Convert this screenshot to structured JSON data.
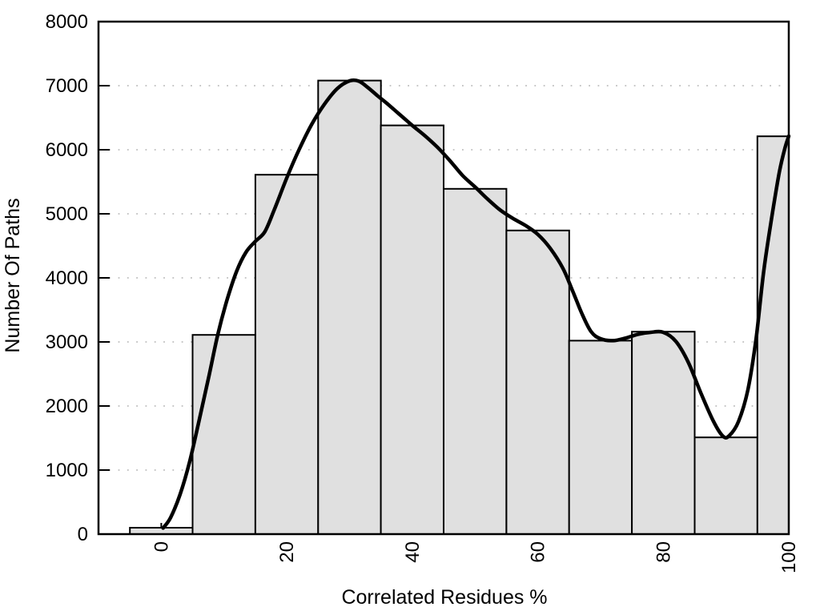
{
  "chart_data": {
    "type": "bar",
    "subtype": "histogram_with_smoothed_curve",
    "title": "",
    "xlabel": "Correlated Residues %",
    "ylabel": "Number Of Paths",
    "xlim": [
      -10,
      100
    ],
    "ylim": [
      0,
      8000
    ],
    "x_ticks": [
      0,
      20,
      40,
      60,
      80,
      100
    ],
    "y_ticks": [
      0,
      1000,
      2000,
      3000,
      4000,
      5000,
      6000,
      7000,
      8000
    ],
    "legend": "none",
    "grid": {
      "horizontal": true,
      "vertical": false,
      "style": "dotted"
    },
    "bins": [
      {
        "x0": -5,
        "x1": 5,
        "count": 100
      },
      {
        "x0": 5,
        "x1": 15,
        "count": 3110
      },
      {
        "x0": 15,
        "x1": 25,
        "count": 5610
      },
      {
        "x0": 25,
        "x1": 35,
        "count": 7080
      },
      {
        "x0": 35,
        "x1": 45,
        "count": 6380
      },
      {
        "x0": 45,
        "x1": 55,
        "count": 5390
      },
      {
        "x0": 55,
        "x1": 65,
        "count": 4740
      },
      {
        "x0": 65,
        "x1": 75,
        "count": 3020
      },
      {
        "x0": 75,
        "x1": 85,
        "count": 3160
      },
      {
        "x0": 85,
        "x1": 95,
        "count": 1510
      },
      {
        "x0": 95,
        "x1": 100,
        "count": 6210
      }
    ],
    "curve": {
      "name": "smoothed-trend-line",
      "points": [
        [
          0.3,
          95
        ],
        [
          1.5,
          260
        ],
        [
          3,
          620
        ],
        [
          4.5,
          1120
        ],
        [
          6,
          1760
        ],
        [
          7.5,
          2420
        ],
        [
          9,
          3110
        ],
        [
          10.5,
          3660
        ],
        [
          12,
          4100
        ],
        [
          13.5,
          4400
        ],
        [
          15,
          4570
        ],
        [
          16.5,
          4720
        ],
        [
          18,
          5060
        ],
        [
          20,
          5560
        ],
        [
          22,
          6010
        ],
        [
          24,
          6400
        ],
        [
          26,
          6710
        ],
        [
          28,
          6950
        ],
        [
          30,
          7075
        ],
        [
          31.5,
          7070
        ],
        [
          33,
          6965
        ],
        [
          34.5,
          6840
        ],
        [
          36,
          6720
        ],
        [
          38,
          6550
        ],
        [
          40,
          6380
        ],
        [
          42,
          6220
        ],
        [
          44,
          6040
        ],
        [
          46,
          5830
        ],
        [
          48,
          5600
        ],
        [
          50,
          5420
        ],
        [
          52,
          5230
        ],
        [
          54,
          5060
        ],
        [
          56,
          4930
        ],
        [
          58,
          4820
        ],
        [
          60,
          4680
        ],
        [
          62,
          4460
        ],
        [
          64,
          4150
        ],
        [
          65.5,
          3810
        ],
        [
          67,
          3450
        ],
        [
          68.5,
          3160
        ],
        [
          70,
          3050
        ],
        [
          72,
          3020
        ],
        [
          74,
          3060
        ],
        [
          76,
          3120
        ],
        [
          78,
          3150
        ],
        [
          80,
          3150
        ],
        [
          82,
          3010
        ],
        [
          84,
          2680
        ],
        [
          86,
          2200
        ],
        [
          88,
          1760
        ],
        [
          89.5,
          1530
        ],
        [
          90.5,
          1535
        ],
        [
          92,
          1760
        ],
        [
          93.5,
          2260
        ],
        [
          94.8,
          3060
        ],
        [
          96,
          4100
        ],
        [
          97.3,
          4950
        ],
        [
          98.5,
          5650
        ],
        [
          99.4,
          6030
        ],
        [
          100,
          6212
        ]
      ]
    },
    "colors": {
      "background": "#ffffff",
      "bar_fill": "#e0e0e0",
      "bar_stroke": "#000000",
      "curve": "#000000",
      "grid": "#b3b3b3",
      "frame": "#000000"
    }
  }
}
